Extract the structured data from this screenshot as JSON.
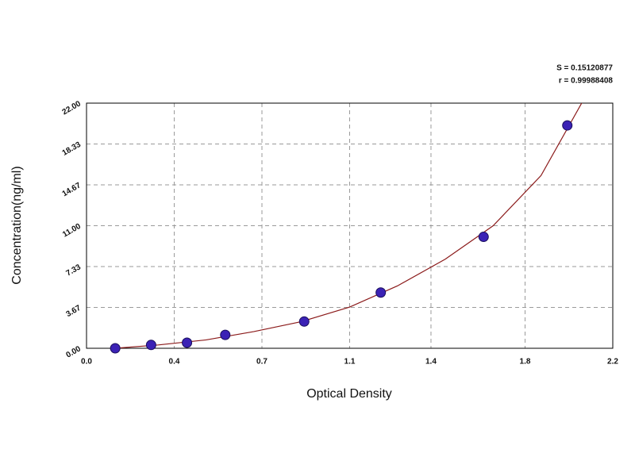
{
  "chart_data": {
    "type": "scatter",
    "x_label": "Optical Density",
    "y_label": "Concentration(ng/ml)",
    "annotations": [
      "S = 0.15120877",
      "r = 0.99988408"
    ],
    "xlim": [
      0,
      2.2
    ],
    "ylim": [
      0,
      22
    ],
    "xticks": [
      {
        "value": 0,
        "label": "0.0"
      },
      {
        "value": 0.36667,
        "label": "0.4"
      },
      {
        "value": 0.73333,
        "label": "0.7"
      },
      1.1,
      {
        "value": 1.44,
        "label": "1.4"
      },
      {
        "value": 1.83333,
        "label": "1.8"
      },
      2.2
    ],
    "yticks": [
      {
        "value": 0,
        "label": "0.00"
      },
      {
        "value": 3.66667,
        "label": "3.67"
      },
      {
        "value": 7.33333,
        "label": "7.33"
      },
      {
        "value": 11,
        "label": "11.00"
      },
      {
        "value": 14.66667,
        "label": "14.67"
      },
      {
        "value": 18.33333,
        "label": "18.33"
      },
      {
        "value": 22,
        "label": "22.00"
      }
    ],
    "grid": true,
    "series": [
      {
        "mode": "markers",
        "color": "#3b22b5",
        "x": [
          0.12,
          0.27,
          0.42,
          0.58,
          0.91,
          1.23,
          1.66,
          2.01
        ],
        "values": [
          0,
          0.3,
          0.5,
          1.2,
          2.4,
          5.0,
          10.0,
          20.0
        ]
      },
      {
        "mode": "line",
        "color": "#8b1a1a",
        "x": [
          0.12,
          0.3,
          0.5,
          0.7,
          0.9,
          1.1,
          1.3,
          1.5,
          1.7,
          1.9,
          2.07
        ],
        "values": [
          0,
          0.3,
          0.75,
          1.5,
          2.4,
          3.7,
          5.6,
          8.0,
          11.0,
          15.5,
          22.0
        ]
      }
    ]
  }
}
